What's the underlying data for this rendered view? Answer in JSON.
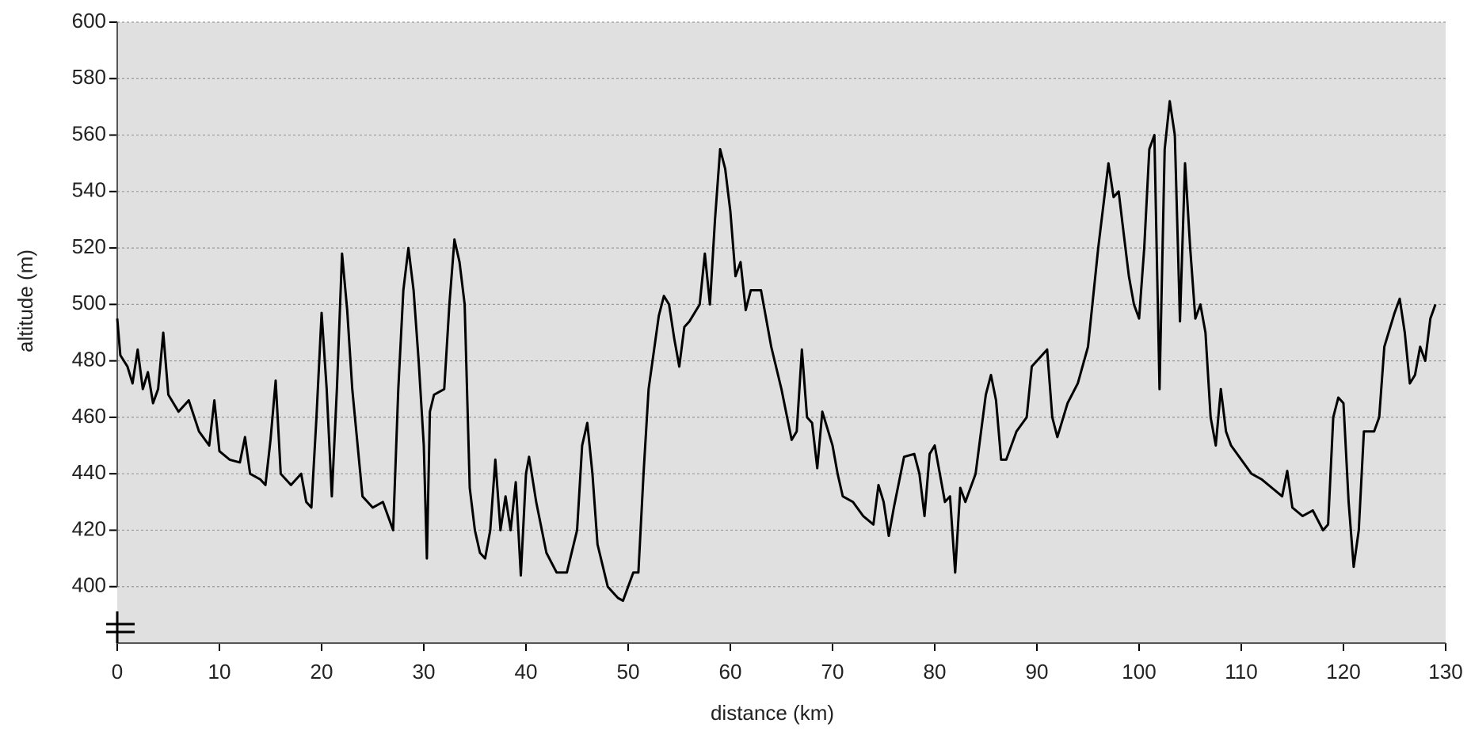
{
  "chart_data": {
    "type": "line",
    "xlabel": "distance (km)",
    "ylabel": "altitude (m)",
    "x": [
      0,
      0.3,
      1,
      1.5,
      2,
      2.5,
      3,
      3.5,
      4,
      4.5,
      5,
      6,
      7,
      8,
      9,
      9.5,
      10,
      11,
      12,
      12.5,
      13,
      14,
      14.5,
      15,
      15.5,
      16,
      17,
      18,
      18.5,
      19,
      19.5,
      20,
      20.5,
      21,
      21.5,
      22,
      22.5,
      23,
      24,
      25,
      26,
      27,
      27.5,
      28,
      28.5,
      29,
      29.5,
      30,
      30.3,
      30.6,
      31,
      32,
      32.5,
      33,
      33.5,
      34,
      34.5,
      35,
      35.5,
      36,
      36.5,
      37,
      37.5,
      38,
      38.5,
      39,
      39.5,
      40,
      40.3,
      41,
      42,
      43,
      44,
      45,
      45.5,
      46,
      46.5,
      47,
      48,
      48.5,
      49,
      49.5,
      50,
      50.5,
      51,
      51.5,
      52,
      53,
      53.5,
      54,
      54.5,
      55,
      55.5,
      56,
      57,
      57.5,
      58,
      58.5,
      59,
      59.5,
      60,
      60.5,
      61,
      61.5,
      62,
      63,
      64,
      65,
      66,
      66.5,
      67,
      67.5,
      68,
      68.5,
      69,
      70,
      70.5,
      71,
      72,
      73,
      74,
      74.5,
      75,
      75.5,
      76,
      77,
      78,
      78.5,
      79,
      79.5,
      80,
      81,
      81.5,
      82,
      82.5,
      83,
      84,
      85,
      85.5,
      86,
      86.5,
      87,
      88,
      89,
      89.5,
      90,
      91,
      91.5,
      92,
      93,
      94,
      95,
      96,
      97,
      97.5,
      98,
      98.5,
      99,
      99.5,
      100,
      100.5,
      101,
      101.5,
      102,
      102.5,
      103,
      103.5,
      104,
      104.5,
      105,
      105.5,
      106,
      106.5,
      107,
      107.5,
      108,
      108.5,
      109,
      110,
      111,
      112,
      113,
      114,
      114.5,
      115,
      116,
      117,
      118,
      118.5,
      119,
      119.5,
      120,
      120.5,
      121,
      121.5,
      122,
      123,
      123.5,
      124,
      125,
      125.5,
      126,
      126.5,
      127,
      127.5,
      128,
      128.5,
      129
    ],
    "series": [
      {
        "name": "altitude",
        "color": "#000000",
        "values": [
          495,
          482,
          478,
          472,
          484,
          470,
          476,
          465,
          470,
          490,
          468,
          462,
          466,
          455,
          450,
          466,
          448,
          445,
          444,
          453,
          440,
          438,
          436,
          452,
          473,
          440,
          436,
          440,
          430,
          428,
          460,
          497,
          470,
          432,
          470,
          518,
          498,
          470,
          432,
          428,
          430,
          420,
          470,
          505,
          520,
          505,
          480,
          450,
          410,
          462,
          468,
          470,
          500,
          523,
          515,
          500,
          435,
          420,
          412,
          410,
          420,
          445,
          420,
          432,
          420,
          437,
          404,
          440,
          446,
          430,
          412,
          405,
          405,
          420,
          450,
          458,
          440,
          415,
          400,
          398,
          396,
          395,
          400,
          405,
          405,
          440,
          470,
          496,
          503,
          500,
          488,
          478,
          492,
          494,
          500,
          518,
          500,
          530,
          555,
          548,
          533,
          510,
          515,
          498,
          505,
          505,
          485,
          470,
          452,
          455,
          484,
          460,
          458,
          442,
          462,
          450,
          440,
          432,
          430,
          425,
          422,
          436,
          430,
          418,
          428,
          446,
          447,
          440,
          425,
          447,
          450,
          430,
          432,
          405,
          435,
          430,
          440,
          468,
          475,
          466,
          445,
          445,
          455,
          460,
          478,
          480,
          484,
          460,
          453,
          465,
          472,
          485,
          520,
          550,
          538,
          540,
          525,
          510,
          500,
          495,
          520,
          555,
          560,
          470,
          555,
          572,
          560,
          494,
          550,
          520,
          495,
          500,
          490,
          460,
          450,
          470,
          455,
          450,
          445,
          440,
          438,
          435,
          432,
          441,
          428,
          425,
          427,
          420,
          422,
          460,
          467,
          465,
          430,
          407,
          420,
          455,
          455,
          460,
          485,
          497,
          502,
          490,
          472,
          475,
          485,
          480,
          495,
          500
        ]
      }
    ],
    "xlim": [
      0,
      130
    ],
    "xticks": [
      0,
      10,
      20,
      30,
      40,
      50,
      60,
      70,
      80,
      90,
      100,
      110,
      120,
      130
    ],
    "ylim": [
      380,
      600
    ],
    "yticks": [
      400,
      420,
      440,
      460,
      480,
      500,
      520,
      540,
      560,
      580,
      600
    ],
    "grid": true
  }
}
